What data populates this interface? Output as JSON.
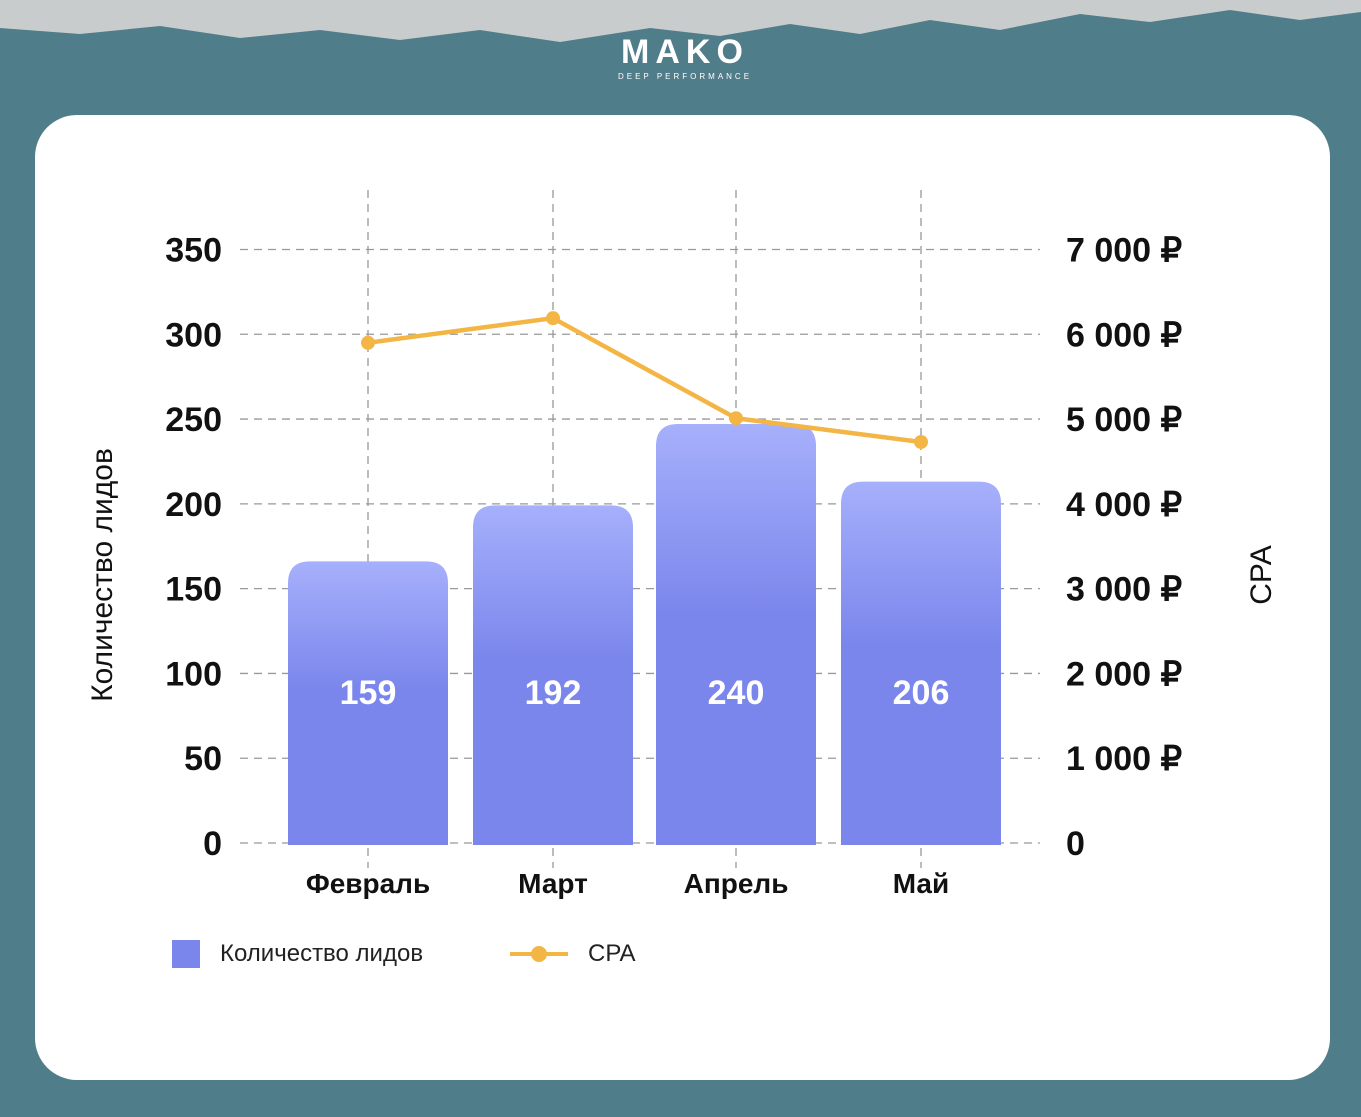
{
  "brand": {
    "name": "MAKO",
    "tagline": "DEEP PERFORMANCE"
  },
  "colors": {
    "bar": "#7b86ec",
    "bar_top": "#a6b0fb",
    "line": "#f3b544",
    "background": "#4f7d8a"
  },
  "chart_data": {
    "type": "bar",
    "categories": [
      "Февраль",
      "Март",
      "Апрель",
      "Май"
    ],
    "series": [
      {
        "name": "Количество лидов",
        "type": "bar",
        "axis": "left",
        "values": [
          159,
          192,
          240,
          206
        ]
      },
      {
        "name": "CPA",
        "type": "line",
        "axis": "right",
        "values": [
          5900,
          6190,
          5010,
          4730
        ]
      }
    ],
    "ylabel": "Количество лидов",
    "y2label": "CPA",
    "ylim": [
      0,
      350
    ],
    "y2lim": [
      0,
      7000
    ],
    "yticks": [
      "0",
      "50",
      "100",
      "150",
      "200",
      "250",
      "300",
      "350"
    ],
    "y2ticks": [
      "0",
      "1 000 ₽",
      "2 000 ₽",
      "3 000 ₽",
      "4 000 ₽",
      "5 000 ₽",
      "6 000 ₽",
      "7 000 ₽"
    ],
    "grid": true,
    "legend": "bottom-left"
  }
}
